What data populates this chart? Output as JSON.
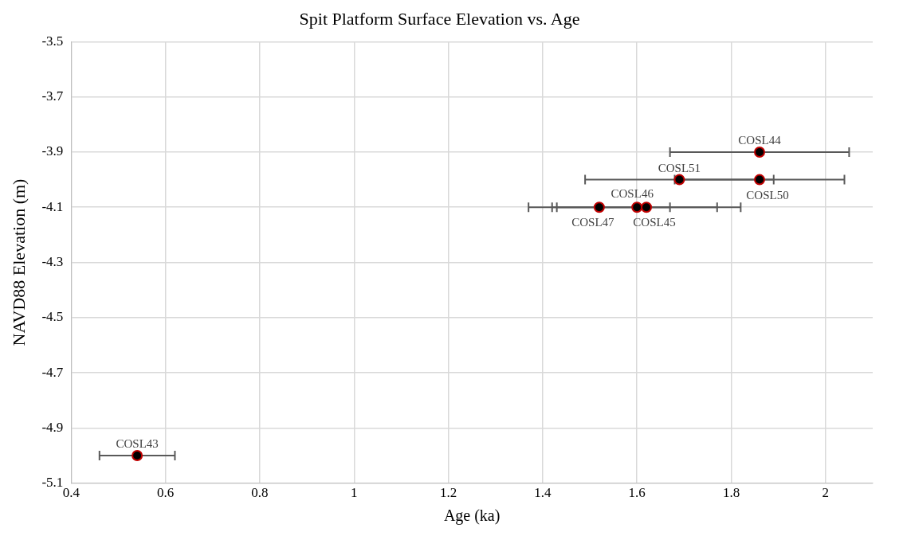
{
  "chart_data": {
    "type": "scatter",
    "title": "Spit Platform Surface Elevation vs. Age",
    "xlabel": "Age (ka)",
    "ylabel": "NAVD88 Elevation (m)",
    "x": [
      0.54,
      1.86,
      1.69,
      1.86,
      1.52,
      1.6,
      1.62
    ],
    "values": [
      -5.0,
      -3.9,
      -4.0,
      -4.0,
      -4.1,
      -4.1,
      -4.1
    ],
    "xerrors": [
      [
        0.46,
        0.62
      ],
      [
        1.67,
        2.05
      ],
      [
        1.49,
        1.89
      ],
      [
        1.68,
        2.04
      ],
      [
        1.37,
        1.67
      ],
      [
        1.42,
        1.77
      ],
      [
        1.43,
        1.82
      ]
    ],
    "color": "#000000",
    "marker": "circle",
    "grid": true,
    "legend": false,
    "xlim": [
      0.4,
      2.1
    ],
    "xticks": [
      0.4,
      0.6,
      0.8,
      1,
      1.2,
      1.4,
      1.6,
      1.8,
      2
    ],
    "ylim": [
      -5.1,
      -3.5
    ],
    "yticks": [
      -5.1,
      -4.9,
      -4.7,
      -4.5,
      -4.3,
      -4.1,
      -3.9,
      -3.7,
      -3.5
    ],
    "annotations": [
      {
        "text": "COSL43",
        "x": 0.54,
        "y": -5.0
      },
      {
        "text": "COSL44",
        "x": 1.86,
        "y": -3.9
      },
      {
        "text": "COSL51",
        "x": 1.69,
        "y": -4.0
      },
      {
        "text": "COSL50",
        "x": 1.86,
        "y": -4.0
      },
      {
        "text": "COSL47",
        "x": 1.52,
        "y": -4.1
      },
      {
        "text": "COSL46",
        "x": 1.6,
        "y": -4.1
      },
      {
        "text": "COSL45",
        "x": 1.62,
        "y": -4.1
      }
    ]
  }
}
